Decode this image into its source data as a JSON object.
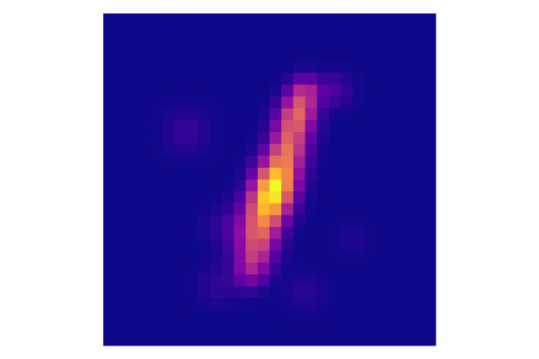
{
  "chart_data": {
    "type": "heatmap",
    "rows": 28,
    "cols": 28,
    "colormap": "plasma",
    "colorscale_stops": [
      "#0d0887",
      "#5302a3",
      "#8b0aa5",
      "#b83289",
      "#db5c68",
      "#f48849",
      "#febc2a",
      "#f0f921"
    ],
    "value_range": [
      0,
      1
    ],
    "axes_visible": false,
    "grid": false,
    "legend": "none",
    "blobs": [
      {
        "r": 6.0,
        "c": 16.5,
        "s": 0.9,
        "a": 0.55
      },
      {
        "r": 7.5,
        "c": 16.0,
        "s": 1.0,
        "a": 0.65
      },
      {
        "r": 9.0,
        "c": 15.5,
        "s": 1.1,
        "a": 0.72
      },
      {
        "r": 11.0,
        "c": 15.0,
        "s": 1.1,
        "a": 0.8
      },
      {
        "r": 13.0,
        "c": 14.3,
        "s": 1.2,
        "a": 0.92
      },
      {
        "r": 14.5,
        "c": 13.8,
        "s": 1.2,
        "a": 1.0
      },
      {
        "r": 16.0,
        "c": 13.2,
        "s": 1.2,
        "a": 0.9
      },
      {
        "r": 18.0,
        "c": 12.6,
        "s": 1.2,
        "a": 0.75
      },
      {
        "r": 20.0,
        "c": 12.2,
        "s": 1.1,
        "a": 0.55
      },
      {
        "r": 21.5,
        "c": 11.8,
        "s": 1.0,
        "a": 0.32
      },
      {
        "r": 6.0,
        "c": 19.0,
        "s": 1.0,
        "a": 0.22
      },
      {
        "r": 9.5,
        "c": 6.5,
        "s": 1.4,
        "a": 0.14
      },
      {
        "r": 17.5,
        "c": 10.0,
        "s": 1.3,
        "a": 0.15
      },
      {
        "r": 22.5,
        "c": 9.0,
        "s": 1.2,
        "a": 0.12
      },
      {
        "r": 23.0,
        "c": 16.5,
        "s": 1.2,
        "a": 0.1
      },
      {
        "r": 18.5,
        "c": 20.5,
        "s": 1.0,
        "a": 0.07
      }
    ]
  }
}
